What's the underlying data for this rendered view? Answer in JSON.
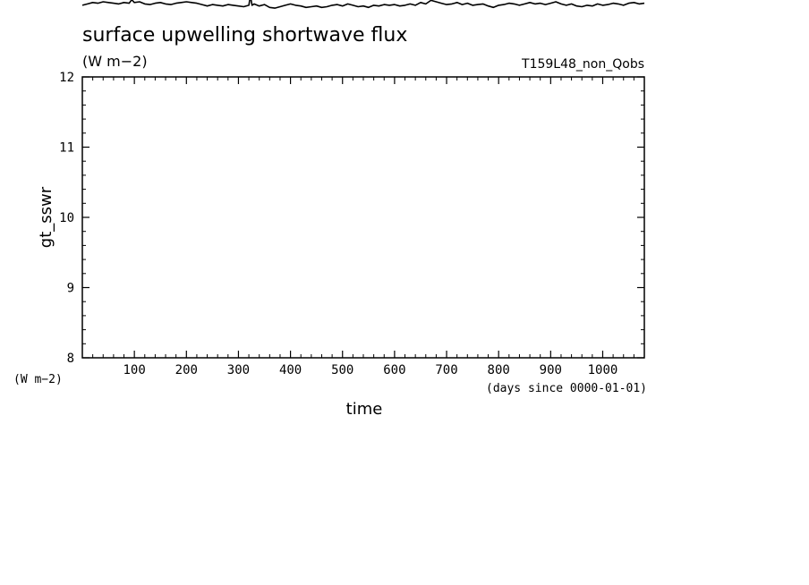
{
  "chart_data": {
    "type": "line",
    "title": "surface upwelling shortwave flux",
    "units": "(W m−2)",
    "experiment": "T159L48_non_Qobs",
    "ylabel": "gt_sswr",
    "yunits": "(W m−2)",
    "xlabel": "time",
    "xunits": "(days since 0000-01-01)",
    "xlim": [
      0,
      1080
    ],
    "ylim": [
      8,
      12
    ],
    "x_ticks": [
      100,
      200,
      300,
      400,
      500,
      600,
      700,
      800,
      900,
      1000
    ],
    "y_ticks": [
      8,
      9,
      10,
      11,
      12
    ],
    "grid": false,
    "legend": "none",
    "line_color": "#000000",
    "series": [
      {
        "x": [
          0,
          10,
          20,
          30,
          40,
          50,
          60,
          70,
          80,
          90,
          95,
          100,
          110,
          120,
          130,
          140,
          150,
          160,
          170,
          180,
          190,
          200,
          210,
          220,
          230,
          240,
          250,
          260,
          270,
          280,
          290,
          300,
          310,
          320,
          323,
          326,
          330,
          340,
          350,
          360,
          370,
          380,
          390,
          400,
          410,
          420,
          430,
          440,
          450,
          460,
          470,
          480,
          490,
          500,
          510,
          520,
          530,
          540,
          550,
          560,
          570,
          580,
          590,
          600,
          610,
          620,
          630,
          640,
          650,
          660,
          670,
          680,
          690,
          700,
          710,
          720,
          730,
          740,
          750,
          760,
          770,
          780,
          790,
          800,
          810,
          820,
          830,
          840,
          850,
          860,
          870,
          880,
          890,
          900,
          910,
          920,
          930,
          940,
          950,
          960,
          970,
          980,
          990,
          1000,
          1010,
          1020,
          1030,
          1040,
          1050,
          1060,
          1070,
          1080
        ],
        "y": [
          13.02,
          13.04,
          13.06,
          13.05,
          13.07,
          13.06,
          13.05,
          13.04,
          13.06,
          13.05,
          13.1,
          13.06,
          13.07,
          13.04,
          13.03,
          13.05,
          13.06,
          13.04,
          13.03,
          13.05,
          13.06,
          13.07,
          13.06,
          13.05,
          13.03,
          13.01,
          13.03,
          13.02,
          13.01,
          13.03,
          13.02,
          13.01,
          13.0,
          13.02,
          13.16,
          13.02,
          13.04,
          13.01,
          13.03,
          12.99,
          12.98,
          13.0,
          13.02,
          13.04,
          13.02,
          13.01,
          12.99,
          13.0,
          13.01,
          12.99,
          13.0,
          13.02,
          13.03,
          13.01,
          13.04,
          13.02,
          13.0,
          13.01,
          12.99,
          13.02,
          13.01,
          13.03,
          13.02,
          13.03,
          13.01,
          13.02,
          13.04,
          13.02,
          13.06,
          13.04,
          13.09,
          13.07,
          13.05,
          13.03,
          13.04,
          13.06,
          13.03,
          13.05,
          13.02,
          13.03,
          13.04,
          13.01,
          12.99,
          13.02,
          13.03,
          13.05,
          13.04,
          13.02,
          13.04,
          13.06,
          13.04,
          13.05,
          13.03,
          13.05,
          13.07,
          13.04,
          13.02,
          13.04,
          13.01,
          13.0,
          13.02,
          13.01,
          13.04,
          13.02,
          13.03,
          13.05,
          13.04,
          13.02,
          13.05,
          13.06,
          13.04,
          13.05
        ]
      }
    ]
  }
}
